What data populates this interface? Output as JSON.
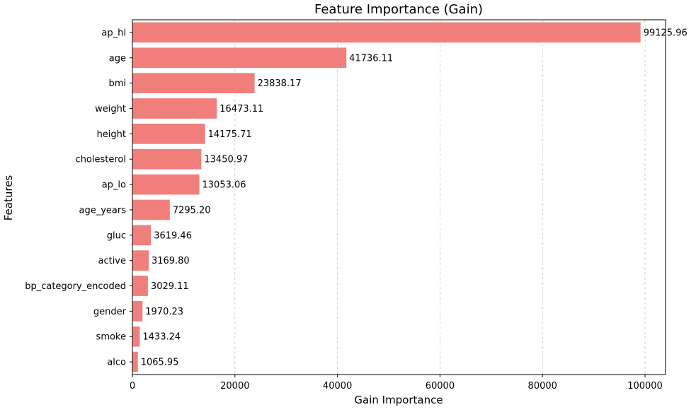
{
  "chart_data": {
    "type": "bar",
    "orientation": "horizontal",
    "title": "Feature Importance (Gain)",
    "xlabel": "Gain Importance",
    "ylabel": "Features",
    "xlim": [
      0,
      104000
    ],
    "xticks": [
      0,
      20000,
      40000,
      60000,
      80000,
      100000
    ],
    "xtick_labels": [
      "0",
      "20000",
      "40000",
      "60000",
      "80000",
      "100000"
    ],
    "grid": "x-dashed",
    "bar_color": "#f07f7c",
    "categories": [
      "ap_hi",
      "age",
      "bmi",
      "weight",
      "height",
      "cholesterol",
      "ap_lo",
      "age_years",
      "gluc",
      "active",
      "bp_category_encoded",
      "gender",
      "smoke",
      "alco"
    ],
    "values": [
      99125.96,
      41736.11,
      23838.17,
      16473.11,
      14175.71,
      13450.97,
      13053.06,
      7295.2,
      3619.46,
      3169.8,
      3029.11,
      1970.23,
      1433.24,
      1065.95
    ],
    "value_labels": [
      "99125.96",
      "41736.11",
      "23838.17",
      "16473.11",
      "14175.71",
      "13450.97",
      "13053.06",
      "7295.20",
      "3619.46",
      "3169.80",
      "3029.11",
      "1970.23",
      "1433.24",
      "1065.95"
    ]
  }
}
